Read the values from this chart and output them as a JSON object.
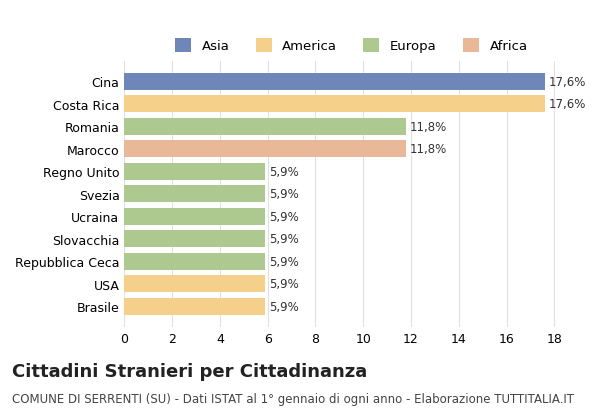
{
  "categories": [
    "Cina",
    "Costa Rica",
    "Romania",
    "Marocco",
    "Regno Unito",
    "Svezia",
    "Ucraina",
    "Slovacchia",
    "Repubblica Ceca",
    "USA",
    "Brasile"
  ],
  "values": [
    17.6,
    17.6,
    11.8,
    11.8,
    5.9,
    5.9,
    5.9,
    5.9,
    5.9,
    5.9,
    5.9
  ],
  "labels": [
    "17,6%",
    "17,6%",
    "11,8%",
    "11,8%",
    "5,9%",
    "5,9%",
    "5,9%",
    "5,9%",
    "5,9%",
    "5,9%",
    "5,9%"
  ],
  "colors": [
    "#6f86b8",
    "#f5d08a",
    "#adc990",
    "#e8b899",
    "#adc990",
    "#adc990",
    "#adc990",
    "#adc990",
    "#adc990",
    "#f5d08a",
    "#f5d08a"
  ],
  "legend_labels": [
    "Asia",
    "America",
    "Europa",
    "Africa"
  ],
  "legend_colors": [
    "#6f86b8",
    "#f5d08a",
    "#adc990",
    "#e8b899"
  ],
  "title": "Cittadini Stranieri per Cittadinanza",
  "subtitle": "COMUNE DI SERRENTI (SU) - Dati ISTAT al 1° gennaio di ogni anno - Elaborazione TUTTITALIA.IT",
  "xlim": [
    0,
    19
  ],
  "xticks": [
    0,
    2,
    4,
    6,
    8,
    10,
    12,
    14,
    16,
    18
  ],
  "background_color": "#ffffff",
  "grid_color": "#e0e0e0",
  "bar_height": 0.75,
  "title_fontsize": 13,
  "subtitle_fontsize": 8.5,
  "tick_fontsize": 9,
  "label_fontsize": 8.5
}
